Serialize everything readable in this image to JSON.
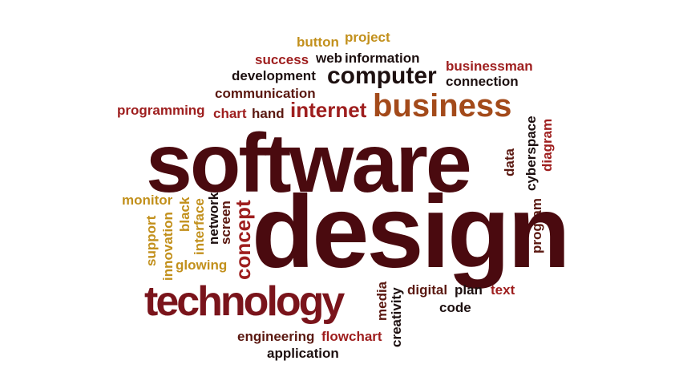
{
  "palette": {
    "dark": "#4a0a0f",
    "maroon": "#7a141b",
    "red": "#9e1e1e",
    "brown": "#a34a1a",
    "gold": "#c2901c",
    "darkbrown": "#5a1810",
    "nearblack": "#1d1010"
  },
  "words": {
    "software": "software",
    "design": "design",
    "technology": "technology",
    "business": "business",
    "computer": "computer",
    "internet": "internet",
    "button": "button",
    "project": "project",
    "success": "success",
    "web": "web",
    "information": "information",
    "businessman": "businessman",
    "development": "development",
    "connection": "connection",
    "communication": "communication",
    "programming": "programming",
    "chart": "chart",
    "hand": "hand",
    "cyberspace": "cyberspace",
    "diagram": "diagram",
    "data": "data",
    "program": "program",
    "monitor": "monitor",
    "support": "support",
    "innovation": "innovation",
    "black": "black",
    "interface": "interface",
    "network": "network",
    "screen": "screen",
    "concept": "concept",
    "glowing": "glowing",
    "media": "media",
    "creativity": "creativity",
    "digital": "digital",
    "plan": "plan",
    "text": "text",
    "code": "code",
    "engineering": "engineering",
    "flowchart": "flowchart",
    "application": "application"
  }
}
